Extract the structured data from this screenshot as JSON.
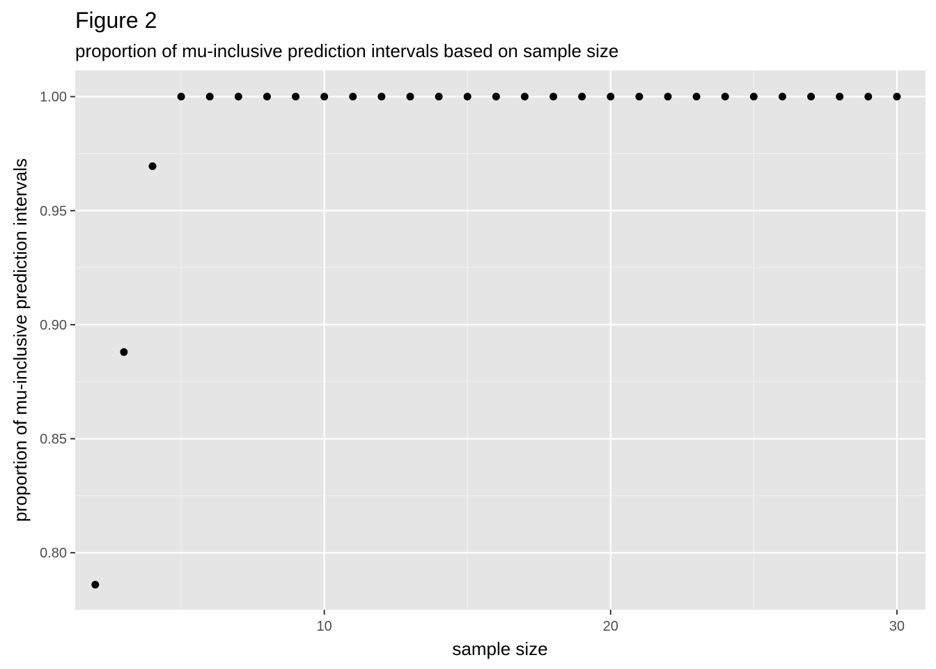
{
  "colors": {
    "panel_background": "#e5e5e5",
    "grid_major": "#ffffff",
    "grid_minor": "#f2f2f2",
    "point": "#000000",
    "tick_text": "#4d4d4d",
    "tick_mark": "#333333"
  },
  "chart_data": {
    "type": "scatter",
    "title": "Figure 2",
    "subtitle": "proportion of mu-inclusive prediction intervals based on sample size",
    "xlabel": "sample size",
    "ylabel": "proportion of mu-inclusive prediction intervals",
    "xlim": [
      1.3,
      31.0
    ],
    "ylim": [
      0.775,
      1.0115
    ],
    "x_ticks": [
      10,
      20,
      30
    ],
    "x_tick_labels": [
      "10",
      "20",
      "30"
    ],
    "x_minor_ticks": [
      5,
      15,
      25
    ],
    "y_ticks": [
      0.8,
      0.85,
      0.9,
      0.95,
      1.0
    ],
    "y_tick_labels": [
      "0.80",
      "0.85",
      "0.90",
      "0.95",
      "1.00"
    ],
    "y_minor_ticks": [
      0.825,
      0.875,
      0.925,
      0.975
    ],
    "grid": true,
    "legend": "none",
    "x": [
      2,
      3,
      4,
      5,
      6,
      7,
      8,
      9,
      10,
      11,
      12,
      13,
      14,
      15,
      16,
      17,
      18,
      19,
      20,
      21,
      22,
      23,
      24,
      25,
      26,
      27,
      28,
      29,
      30
    ],
    "y": [
      0.786,
      0.888,
      0.9695,
      1.0,
      1.0,
      1.0,
      1.0,
      1.0,
      1.0,
      1.0,
      1.0,
      1.0,
      1.0,
      1.0,
      1.0,
      1.0,
      1.0,
      1.0,
      1.0,
      1.0,
      1.0,
      1.0,
      1.0,
      1.0,
      1.0,
      1.0,
      1.0,
      1.0,
      1.0
    ]
  }
}
